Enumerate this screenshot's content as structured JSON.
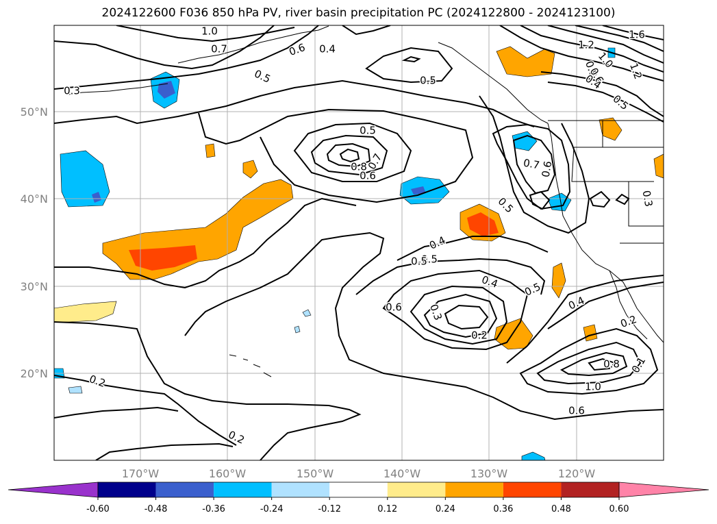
{
  "title": "2024122600 F036 850 hPa PV, river basin precipitation PC (2024122800 - 2024123100)",
  "axes": {
    "lat_labels": [
      "50°N",
      "40°N",
      "30°N",
      "20°N"
    ],
    "lon_labels": [
      "170°W",
      "160°W",
      "150°W",
      "140°W",
      "130°W",
      "120°W"
    ],
    "grid": true
  },
  "contour_labels": [
    "1.0",
    "0.7",
    "0.6",
    "0.4",
    "0.5",
    "0.3",
    "0.5",
    "0.5",
    "0.8",
    "0.7",
    "0.6",
    "0.5",
    "1.2",
    "1.0",
    "0.8",
    "0.6",
    "0.4",
    "0.5",
    "1.6",
    "1.2",
    "0.7",
    "0.6",
    "0.5",
    "0.3",
    "0.4",
    "0.5",
    "0.6",
    "0.3",
    "0.4",
    "0.5",
    "0.2",
    "0.4",
    "0.2",
    "0.1",
    "0.8",
    "1.0",
    "0.6",
    "0.2",
    "0.2"
  ],
  "colorbar": {
    "ticks": [
      "-0.60",
      "-0.48",
      "-0.36",
      "-0.24",
      "-0.12",
      "0.12",
      "0.24",
      "0.36",
      "0.48",
      "0.60"
    ],
    "colors": [
      "#9932cc",
      "#00008b",
      "#3a5fcd",
      "#00bfff",
      "#b0e2ff",
      "#ffffff",
      "#ffec8b",
      "#ffa500",
      "#ff4500",
      "#b22222",
      "#ff83a8"
    ]
  }
}
